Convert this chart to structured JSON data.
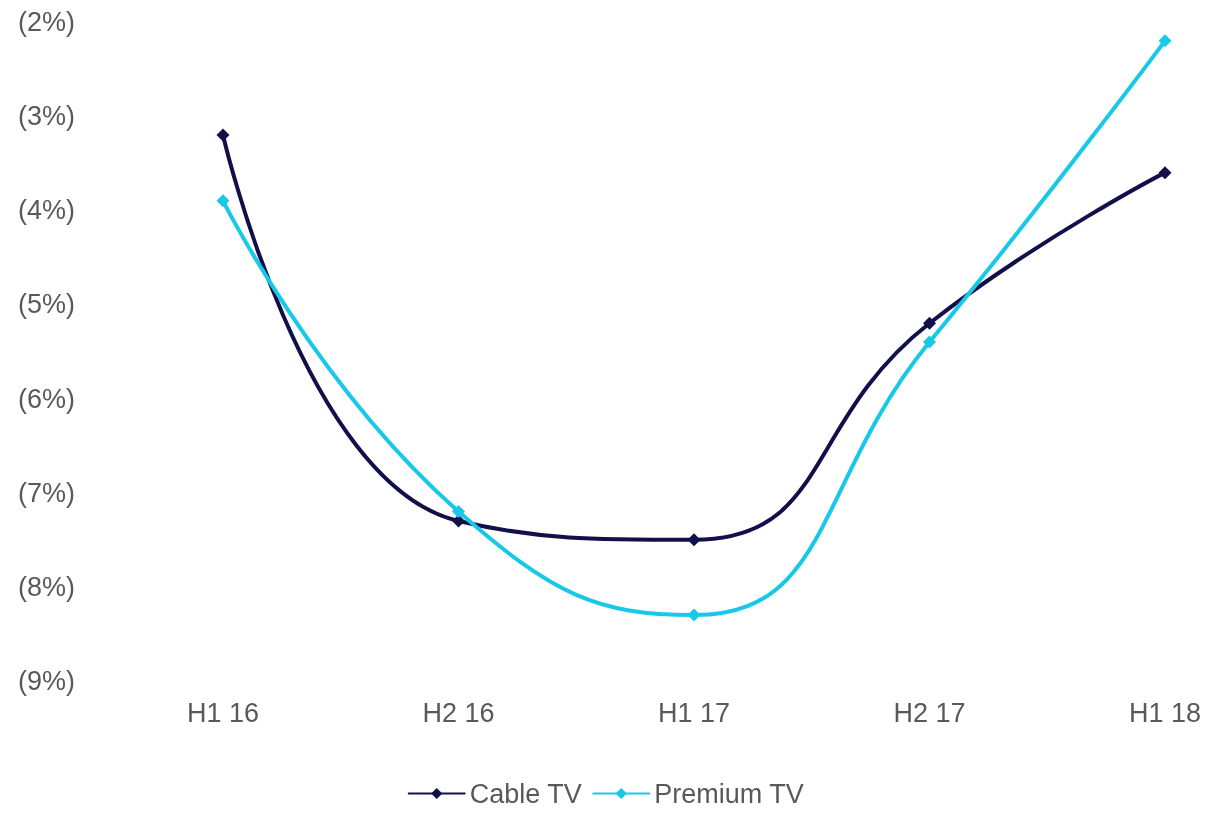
{
  "chart_data": {
    "type": "line",
    "categories": [
      "H1 16",
      "H2 16",
      "H1 17",
      "H2 17",
      "H1 18"
    ],
    "series": [
      {
        "name": "Cable TV",
        "color": "#12104a",
        "values": [
          -3.2,
          -7.3,
          -7.5,
          -5.2,
          -3.6
        ]
      },
      {
        "name": "Premium TV",
        "color": "#18c8e8",
        "values": [
          -3.9,
          -7.2,
          -8.3,
          -5.4,
          -2.2
        ]
      }
    ],
    "ylim": [
      -9,
      -2
    ],
    "yticks": [
      {
        "value": -9,
        "label": "(9%)"
      },
      {
        "value": -8,
        "label": "(8%)"
      },
      {
        "value": -7,
        "label": "(7%)"
      },
      {
        "value": -6,
        "label": "(6%)"
      },
      {
        "value": -5,
        "label": "(5%)"
      },
      {
        "value": -4,
        "label": "(4%)"
      },
      {
        "value": -3,
        "label": "(3%)"
      },
      {
        "value": -2,
        "label": "(2%)"
      }
    ],
    "grid": false,
    "legend": "bottom",
    "marker": "diamond",
    "line_style": "solid"
  }
}
